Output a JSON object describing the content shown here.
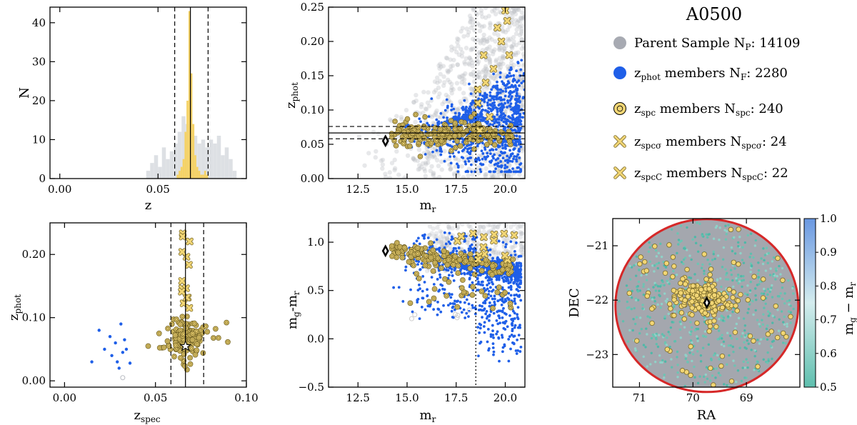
{
  "figure": {
    "title": "A0500"
  },
  "legend": {
    "items": [
      {
        "id": "parent",
        "label": "Parent Sample N",
        "sub": "P",
        "suffix": ": 14109",
        "marker": "circle",
        "color": "#a7aab2"
      },
      {
        "id": "zphot",
        "label": "z",
        "sub": "phot",
        "middle": " members N",
        "sub2": "F",
        "suffix": ": 2280",
        "marker": "circle",
        "color": "#1f5fe8"
      },
      {
        "id": "zspc",
        "label": "z",
        "sub": "spc",
        "middle": " members N",
        "sub2": "spc",
        "suffix": ": 240",
        "marker": "ringed-circle",
        "color": "#f2d675"
      },
      {
        "id": "zspcsigma",
        "label": "z",
        "sub": "spcσ",
        "middle": " members N",
        "sub2": "spcσ",
        "suffix": ": 24",
        "marker": "x",
        "color": "#f2d675"
      },
      {
        "id": "zspcC",
        "label": "z",
        "sub": "spcC",
        "middle": " members N",
        "sub2": "spcC",
        "suffix": ": 22",
        "marker": "x",
        "color": "#f2d675"
      }
    ]
  },
  "colors": {
    "parent": "#b9bcc3",
    "zphot": "#1f5fe8",
    "spc_fill": "#f2d675",
    "spc_edge": "#7a6a2a",
    "hist_gold": "#f5d266",
    "hist_gray": "#dde0e4",
    "ring": "#d62828",
    "disk": "#a4a7ae"
  },
  "chart_data": [
    {
      "id": "hist_z",
      "type": "bar",
      "xlabel": "z",
      "ylabel": "N",
      "xlim": [
        -0.005,
        0.095
      ],
      "ylim": [
        0,
        44
      ],
      "xticks": [
        "0.00",
        "0.05"
      ],
      "xtick_values": [
        0.0,
        0.05
      ],
      "yticks": [
        "0",
        "10",
        "20",
        "30",
        "40"
      ],
      "ytick_values": [
        0,
        10,
        20,
        30,
        40
      ],
      "vlines_solid": [
        0.0665
      ],
      "vlines_dashed": [
        0.0585,
        0.0755
      ],
      "series": [
        {
          "name": "Parent Sample",
          "bins_left": [
            0.044,
            0.046,
            0.048,
            0.05,
            0.052,
            0.054,
            0.056,
            0.058,
            0.06,
            0.062,
            0.064,
            0.066,
            0.068,
            0.07,
            0.072,
            0.074,
            0.076,
            0.078,
            0.08,
            0.082,
            0.084,
            0.086,
            0.088
          ],
          "values": [
            2,
            4,
            6,
            3,
            8,
            5,
            7,
            9,
            12,
            16,
            14,
            12,
            11,
            9,
            10,
            8,
            10,
            9,
            11,
            6,
            8,
            5,
            2
          ]
        },
        {
          "name": "zspc members",
          "bins_left": [
            0.0595,
            0.0605,
            0.0615,
            0.0625,
            0.0635,
            0.0645,
            0.0655,
            0.0665,
            0.0675,
            0.0685,
            0.0695,
            0.0705,
            0.0715,
            0.0725,
            0.0735,
            0.0745
          ],
          "values": [
            1,
            2,
            3,
            5,
            12,
            20,
            43,
            27,
            14,
            6,
            3,
            2,
            1,
            1,
            2,
            1
          ]
        }
      ]
    },
    {
      "id": "zphot_vs_mr",
      "type": "scatter",
      "xlabel": "m",
      "xlabel_sub": "r",
      "ylabel": "z",
      "ylabel_sub": "phot",
      "xlim": [
        11.0,
        21.0
      ],
      "ylim": [
        0.0,
        0.25
      ],
      "xticks": [
        "12.5",
        "15.0",
        "17.5",
        "20.0"
      ],
      "xtick_values": [
        12.5,
        15.0,
        17.5,
        20.0
      ],
      "yticks": [
        "0.00",
        "0.05",
        "0.10",
        "0.15",
        "0.20",
        "0.25"
      ],
      "ytick_values": [
        0.0,
        0.05,
        0.1,
        0.15,
        0.2,
        0.25
      ],
      "hlines_solid": [
        0.0665
      ],
      "hlines_dashed": [
        0.058,
        0.076
      ],
      "vlines_dotted": [
        18.5
      ],
      "bcg": {
        "x": 13.9,
        "y": 0.055
      },
      "zspcsigma_points": [
        [
          18.6,
          0.11
        ],
        [
          19.0,
          0.14
        ],
        [
          19.4,
          0.16
        ],
        [
          19.8,
          0.2
        ],
        [
          20.1,
          0.23
        ],
        [
          18.9,
          0.18
        ],
        [
          19.6,
          0.22
        ],
        [
          20.0,
          0.245
        ],
        [
          18.7,
          0.07
        ],
        [
          19.2,
          0.09
        ],
        [
          18.6,
          0.13
        ],
        [
          20.2,
          0.18
        ]
      ]
    },
    {
      "id": "zphot_vs_zspec",
      "type": "scatter",
      "xlabel": "z",
      "xlabel_sub": "spec",
      "ylabel": "z",
      "ylabel_sub": "phot",
      "xlim": [
        -0.008,
        0.1
      ],
      "ylim": [
        -0.01,
        0.25
      ],
      "xticks": [
        "0.00",
        "0.05",
        "0.10"
      ],
      "xtick_values": [
        0.0,
        0.05,
        0.1
      ],
      "yticks": [
        "0.00",
        "0.10",
        "0.20"
      ],
      "ytick_values": [
        0.0,
        0.1,
        0.2
      ],
      "vlines_solid": [
        0.0665
      ],
      "vlines_dashed": [
        0.0585,
        0.0765
      ],
      "bcg": {
        "x": 0.0665,
        "y": 0.055
      },
      "zphot_points": [
        [
          0.015,
          0.03
        ],
        [
          0.019,
          0.08
        ],
        [
          0.022,
          0.05
        ],
        [
          0.025,
          0.07
        ],
        [
          0.026,
          0.04
        ],
        [
          0.028,
          0.06
        ],
        [
          0.029,
          0.03
        ],
        [
          0.03,
          0.02
        ],
        [
          0.031,
          0.09
        ],
        [
          0.032,
          0.045
        ],
        [
          0.033,
          0.065
        ],
        [
          0.034,
          0.05
        ],
        [
          0.036,
          0.028
        ]
      ]
    },
    {
      "id": "color_magnitude",
      "type": "scatter",
      "xlabel": "m",
      "xlabel_sub": "r",
      "ylabel": "m",
      "ylabel_sub": "g",
      "ylabel_mid": "-m",
      "ylabel_sub2": "r",
      "xlim": [
        11.0,
        21.0
      ],
      "ylim": [
        -0.5,
        1.2
      ],
      "xticks": [
        "12.5",
        "15.0",
        "17.5",
        "20.0"
      ],
      "xtick_values": [
        12.5,
        15.0,
        17.5,
        20.0
      ],
      "yticks": [
        "−0.5",
        "0.0",
        "0.5",
        "1.0"
      ],
      "ytick_values": [
        -0.5,
        0.0,
        0.5,
        1.0
      ],
      "vlines_dotted": [
        18.5
      ],
      "bcg": {
        "x": 13.9,
        "y": 0.91
      }
    },
    {
      "id": "sky_map",
      "type": "scatter",
      "xlabel": "RA",
      "ylabel": "DEC",
      "xlim": [
        71.5,
        68.0
      ],
      "ylim": [
        -23.6,
        -20.5
      ],
      "xticks": [
        "71",
        "70",
        "69"
      ],
      "xtick_values": [
        71,
        70,
        69
      ],
      "yticks": [
        "−21",
        "−22",
        "−23"
      ],
      "ytick_values": [
        -21,
        -22,
        -23
      ],
      "center": {
        "x": 69.74,
        "y": -22.1
      },
      "colorbar": {
        "label": "m",
        "label_sub": "g",
        "label_mid": " − m",
        "label_sub2": "r",
        "range": [
          0.5,
          1.0
        ],
        "ticks": [
          "0.5",
          "0.6",
          "0.7",
          "0.8",
          "0.9",
          "1.0"
        ],
        "tick_values": [
          0.5,
          0.6,
          0.7,
          0.8,
          0.9,
          1.0
        ],
        "colors": [
          "#5fbfae",
          "#d4ecee",
          "#6a98e2"
        ]
      }
    }
  ]
}
